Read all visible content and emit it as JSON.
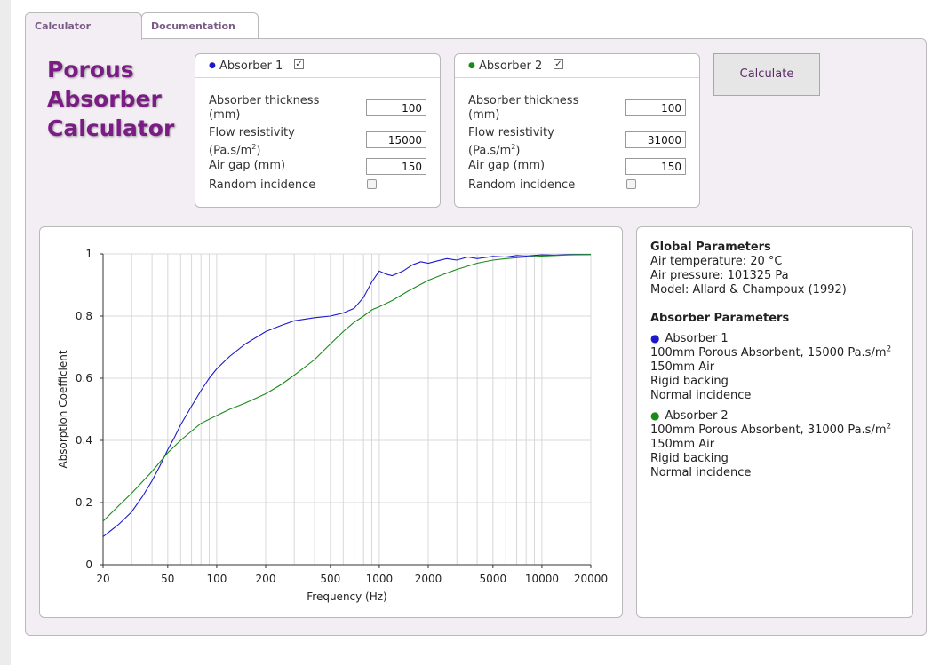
{
  "tabs": [
    {
      "label": "Calculator",
      "active": true
    },
    {
      "label": "Documentation",
      "active": false
    }
  ],
  "app_title": [
    "Porous",
    "Absorber",
    "Calculator"
  ],
  "absorbers": [
    {
      "name": "Absorber 1",
      "color": "#1a1acc",
      "enabled": true,
      "thickness_label": [
        "Absorber thickness",
        "(mm)"
      ],
      "thickness": "100",
      "resistivity_label": [
        "Flow resistivity",
        "(Pa.s/m",
        "2",
        ")"
      ],
      "resistivity": "15000",
      "airgap_label": "Air gap (mm)",
      "airgap": "150",
      "random_label": "Random incidence",
      "random": false
    },
    {
      "name": "Absorber 2",
      "color": "#1a8a1a",
      "enabled": true,
      "thickness_label": [
        "Absorber thickness",
        "(mm)"
      ],
      "thickness": "100",
      "resistivity_label": [
        "Flow resistivity",
        "(Pa.s/m",
        "2",
        ")"
      ],
      "resistivity": "31000",
      "airgap_label": "Air gap (mm)",
      "airgap": "150",
      "random_label": "Random incidence",
      "random": false
    }
  ],
  "calculate_label": "Calculate",
  "info": {
    "global_title": "Global Parameters",
    "global_lines": [
      "Air temperature: 20 °C",
      "Air pressure: 101325 Pa",
      "Model: Allard & Champoux (1992)"
    ],
    "absorber_title": "Absorber Parameters",
    "absorbers": [
      {
        "name": "Absorber 1",
        "color": "#1a1acc",
        "lines": [
          "100mm Porous Absorbent, 15000 Pa.s/m",
          "150mm Air",
          "Rigid backing",
          "Normal incidence"
        ],
        "sup": "2"
      },
      {
        "name": "Absorber 2",
        "color": "#1a8a1a",
        "lines": [
          "100mm Porous Absorbent, 31000 Pa.s/m",
          "150mm Air",
          "Rigid backing",
          "Normal incidence"
        ],
        "sup": "2"
      }
    ]
  },
  "chart_data": {
    "type": "line",
    "xlabel": "Frequency (Hz)",
    "ylabel": "Absorption Coefficient",
    "xscale": "log",
    "xlim": [
      20,
      20000
    ],
    "ylim": [
      0,
      1
    ],
    "xticks": [
      20,
      50,
      100,
      200,
      500,
      1000,
      2000,
      5000,
      10000,
      20000
    ],
    "xtick_labels": [
      "20",
      "50",
      "100",
      "200",
      "500",
      "1000",
      "2000",
      "5000",
      "10000",
      "20000"
    ],
    "yticks": [
      0,
      0.2,
      0.4,
      0.6,
      0.8,
      1
    ],
    "ytick_labels": [
      "0",
      "0.2",
      "0.4",
      "0.6",
      "0.8",
      "1"
    ],
    "grid": true,
    "legend": "none",
    "series": [
      {
        "color": "#1a1acc",
        "x": [
          20,
          25,
          30,
          35,
          40,
          45,
          50,
          55,
          60,
          70,
          80,
          90,
          100,
          120,
          150,
          200,
          250,
          300,
          400,
          500,
          600,
          700,
          800,
          900,
          1000,
          1100,
          1200,
          1400,
          1600,
          1800,
          2000,
          2300,
          2600,
          3000,
          3500,
          4000,
          5000,
          6000,
          7000,
          8000,
          10000,
          12000,
          15000,
          20000
        ],
        "y": [
          0.09,
          0.13,
          0.17,
          0.22,
          0.27,
          0.32,
          0.37,
          0.41,
          0.45,
          0.51,
          0.56,
          0.6,
          0.63,
          0.67,
          0.71,
          0.75,
          0.77,
          0.785,
          0.795,
          0.8,
          0.81,
          0.825,
          0.86,
          0.91,
          0.945,
          0.935,
          0.93,
          0.945,
          0.965,
          0.975,
          0.97,
          0.978,
          0.985,
          0.98,
          0.99,
          0.985,
          0.992,
          0.99,
          0.995,
          0.993,
          0.997,
          0.996,
          0.998,
          0.998
        ]
      },
      {
        "color": "#1a8a1a",
        "x": [
          20,
          25,
          30,
          40,
          50,
          60,
          70,
          80,
          100,
          120,
          150,
          200,
          250,
          300,
          400,
          500,
          600,
          700,
          800,
          900,
          1000,
          1200,
          1500,
          2000,
          2500,
          3000,
          4000,
          5000,
          6000,
          8000,
          10000,
          15000,
          20000
        ],
        "y": [
          0.14,
          0.19,
          0.23,
          0.3,
          0.36,
          0.4,
          0.43,
          0.455,
          0.48,
          0.5,
          0.52,
          0.55,
          0.58,
          0.61,
          0.66,
          0.71,
          0.75,
          0.78,
          0.8,
          0.82,
          0.83,
          0.85,
          0.88,
          0.915,
          0.935,
          0.95,
          0.97,
          0.98,
          0.985,
          0.99,
          0.993,
          0.997,
          0.998
        ]
      }
    ]
  }
}
